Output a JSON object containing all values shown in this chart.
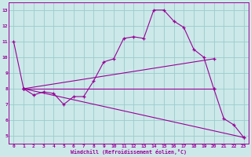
{
  "bg_color": "#cce8e8",
  "line_color": "#990099",
  "grid_color": "#99cccc",
  "xlim": [
    -0.5,
    23.5
  ],
  "ylim": [
    4.5,
    13.5
  ],
  "yticks": [
    5,
    6,
    7,
    8,
    9,
    10,
    11,
    12,
    13
  ],
  "xticks": [
    0,
    1,
    2,
    3,
    4,
    5,
    6,
    7,
    8,
    9,
    10,
    11,
    12,
    13,
    14,
    15,
    16,
    17,
    18,
    19,
    20,
    21,
    22,
    23
  ],
  "xlabel": "Windchill (Refroidissement éolien,°C)",
  "lines": [
    {
      "x": [
        0,
        1,
        2,
        3,
        4,
        5,
        6,
        7,
        8,
        9,
        10,
        11,
        12,
        13,
        14,
        15,
        16,
        17,
        18,
        19,
        20,
        21,
        22,
        23
      ],
      "y": [
        11.0,
        8.0,
        7.6,
        7.8,
        7.7,
        7.0,
        7.5,
        7.5,
        8.5,
        9.7,
        9.9,
        11.2,
        11.3,
        11.2,
        13.0,
        13.0,
        12.3,
        11.9,
        10.5,
        10.0,
        8.0,
        6.1,
        5.7,
        4.9
      ]
    },
    {
      "x": [
        1,
        20
      ],
      "y": [
        8.0,
        9.9
      ]
    },
    {
      "x": [
        1,
        20
      ],
      "y": [
        8.0,
        8.0
      ]
    },
    {
      "x": [
        1,
        23
      ],
      "y": [
        8.0,
        4.9
      ]
    }
  ]
}
